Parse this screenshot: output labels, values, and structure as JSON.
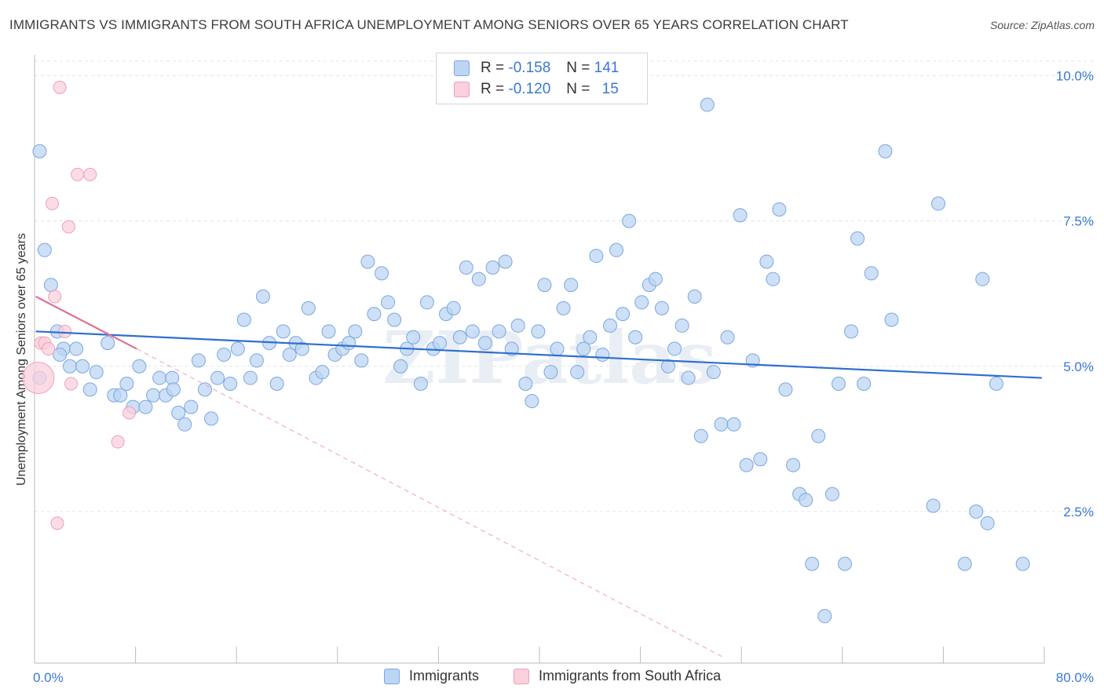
{
  "title": "IMMIGRANTS VS IMMIGRANTS FROM SOUTH AFRICA UNEMPLOYMENT AMONG SENIORS OVER 65 YEARS CORRELATION CHART",
  "source": "Source: ZipAtlas.com",
  "watermark": "ZIPatlas",
  "legend_stats": [
    {
      "r_label": "R =",
      "r_value": "-0.158",
      "n_label": "N =",
      "n_value": "141",
      "color": "#a8c8f0"
    },
    {
      "r_label": "R =",
      "r_value": "-0.120",
      "n_label": "N =",
      "n_value": "15",
      "color": "#f5b6c8"
    }
  ],
  "legend_series": [
    {
      "label": "Immigrants",
      "color": "#a8c8f0"
    },
    {
      "label": "Immigrants from South Africa",
      "color": "#f5b6c8"
    }
  ],
  "colors": {
    "blue_fill": "#bcd5f3",
    "blue_stroke": "#7aa7e0",
    "blue_line": "#2f6fcf",
    "pink_fill": "#f9d0dc",
    "pink_stroke": "#ee9fb5",
    "pink_line": "#e07095",
    "tick_text": "#3a78d4",
    "grid": "#e4e4e4"
  },
  "chart_data": {
    "type": "scatter",
    "title": "IMMIGRANTS VS IMMIGRANTS FROM SOUTH AFRICA UNEMPLOYMENT AMONG SENIORS OVER 65 YEARS CORRELATION CHART",
    "xlabel": "",
    "ylabel": "Unemployment Among Seniors over 65 years",
    "xlim": [
      0,
      80
    ],
    "ylim": [
      0,
      10.25
    ],
    "x_tick_labels": [
      "0.0%",
      "80.0%"
    ],
    "y_ticks": [
      2.5,
      5.0,
      7.5,
      10.0
    ],
    "y_tick_labels": [
      "2.5%",
      "5.0%",
      "7.5%",
      "10.0%"
    ],
    "grid": "horizontal dashed",
    "legend_position": "top-center",
    "series": [
      {
        "name": "Immigrants",
        "trend": {
          "x0": 0.1,
          "y0": 5.6,
          "x1": 79.8,
          "y1": 4.8
        },
        "points": [
          [
            0.4,
            8.7
          ],
          [
            0.8,
            7.0
          ],
          [
            1.3,
            6.4
          ],
          [
            1.8,
            5.6
          ],
          [
            2.3,
            5.3
          ],
          [
            2.8,
            5.0
          ],
          [
            3.3,
            5.3
          ],
          [
            3.8,
            5.0
          ],
          [
            4.4,
            4.6
          ],
          [
            4.9,
            4.9
          ],
          [
            5.8,
            5.4
          ],
          [
            6.3,
            4.5
          ],
          [
            6.8,
            4.5
          ],
          [
            7.3,
            4.7
          ],
          [
            7.8,
            4.3
          ],
          [
            8.3,
            5.0
          ],
          [
            8.8,
            4.3
          ],
          [
            9.4,
            4.5
          ],
          [
            9.9,
            4.8
          ],
          [
            10.4,
            4.5
          ],
          [
            10.9,
            4.8
          ],
          [
            11.4,
            4.2
          ],
          [
            11.9,
            4.0
          ],
          [
            12.4,
            4.3
          ],
          [
            13.0,
            5.1
          ],
          [
            13.5,
            4.6
          ],
          [
            14.0,
            4.1
          ],
          [
            14.5,
            4.8
          ],
          [
            15.0,
            5.2
          ],
          [
            15.5,
            4.7
          ],
          [
            16.1,
            5.3
          ],
          [
            16.6,
            5.8
          ],
          [
            17.1,
            4.8
          ],
          [
            17.6,
            5.1
          ],
          [
            18.1,
            6.2
          ],
          [
            18.6,
            5.4
          ],
          [
            19.2,
            4.7
          ],
          [
            19.7,
            5.6
          ],
          [
            20.2,
            5.2
          ],
          [
            20.7,
            5.4
          ],
          [
            21.2,
            5.3
          ],
          [
            21.7,
            6.0
          ],
          [
            22.3,
            4.8
          ],
          [
            22.8,
            4.9
          ],
          [
            23.3,
            5.6
          ],
          [
            23.8,
            5.2
          ],
          [
            24.4,
            5.3
          ],
          [
            24.9,
            5.4
          ],
          [
            25.4,
            5.6
          ],
          [
            25.9,
            5.1
          ],
          [
            26.4,
            6.8
          ],
          [
            26.9,
            5.9
          ],
          [
            27.5,
            6.6
          ],
          [
            28.0,
            6.1
          ],
          [
            28.5,
            5.8
          ],
          [
            29.0,
            5.0
          ],
          [
            29.5,
            5.3
          ],
          [
            30.0,
            5.5
          ],
          [
            30.6,
            4.7
          ],
          [
            31.1,
            6.1
          ],
          [
            31.6,
            5.3
          ],
          [
            32.1,
            5.4
          ],
          [
            32.6,
            5.9
          ],
          [
            33.2,
            6.0
          ],
          [
            33.7,
            5.5
          ],
          [
            34.2,
            6.7
          ],
          [
            34.7,
            5.6
          ],
          [
            35.2,
            6.5
          ],
          [
            35.7,
            5.4
          ],
          [
            36.3,
            6.7
          ],
          [
            36.8,
            5.6
          ],
          [
            37.3,
            6.8
          ],
          [
            37.8,
            5.3
          ],
          [
            38.3,
            5.7
          ],
          [
            38.9,
            4.7
          ],
          [
            39.4,
            4.4
          ],
          [
            39.9,
            5.6
          ],
          [
            40.4,
            6.4
          ],
          [
            40.9,
            4.9
          ],
          [
            41.4,
            5.3
          ],
          [
            41.9,
            6.0
          ],
          [
            42.5,
            6.4
          ],
          [
            43.0,
            4.9
          ],
          [
            43.5,
            5.3
          ],
          [
            44.0,
            5.5
          ],
          [
            44.5,
            6.9
          ],
          [
            45.0,
            5.2
          ],
          [
            45.6,
            5.7
          ],
          [
            46.1,
            7.0
          ],
          [
            46.6,
            5.9
          ],
          [
            47.1,
            7.5
          ],
          [
            47.6,
            5.5
          ],
          [
            48.1,
            6.1
          ],
          [
            48.7,
            6.4
          ],
          [
            49.2,
            6.5
          ],
          [
            49.7,
            6.0
          ],
          [
            50.2,
            5.0
          ],
          [
            50.7,
            5.3
          ],
          [
            51.3,
            5.7
          ],
          [
            51.8,
            4.8
          ],
          [
            52.3,
            6.2
          ],
          [
            52.8,
            3.8
          ],
          [
            53.3,
            9.5
          ],
          [
            53.8,
            4.9
          ],
          [
            54.4,
            4.0
          ],
          [
            54.9,
            5.5
          ],
          [
            55.4,
            4.0
          ],
          [
            55.9,
            7.6
          ],
          [
            56.4,
            3.3
          ],
          [
            56.9,
            5.1
          ],
          [
            57.5,
            3.4
          ],
          [
            58.0,
            6.8
          ],
          [
            58.5,
            6.5
          ],
          [
            59.0,
            7.7
          ],
          [
            59.5,
            4.6
          ],
          [
            60.1,
            3.3
          ],
          [
            60.6,
            2.8
          ],
          [
            61.1,
            2.7
          ],
          [
            61.6,
            1.6
          ],
          [
            62.1,
            3.8
          ],
          [
            62.6,
            0.7
          ],
          [
            63.2,
            2.8
          ],
          [
            63.7,
            4.7
          ],
          [
            64.2,
            1.6
          ],
          [
            64.7,
            5.6
          ],
          [
            65.2,
            7.2
          ],
          [
            65.7,
            4.7
          ],
          [
            66.3,
            6.6
          ],
          [
            67.4,
            8.7
          ],
          [
            67.9,
            5.8
          ],
          [
            71.2,
            2.6
          ],
          [
            71.6,
            7.8
          ],
          [
            73.7,
            1.6
          ],
          [
            74.6,
            2.5
          ],
          [
            75.1,
            6.5
          ],
          [
            75.5,
            2.3
          ],
          [
            76.2,
            4.7
          ],
          [
            78.3,
            1.6
          ],
          [
            0.4,
            4.8
          ],
          [
            2.0,
            5.2
          ],
          [
            11.0,
            4.6
          ]
        ]
      },
      {
        "name": "Immigrants from South Africa",
        "trend": {
          "x0": 0.1,
          "y0": 6.2,
          "x1": 8.1,
          "y1": 5.3
        },
        "trend_extension": {
          "x0": 8.1,
          "y0": 5.3,
          "x1": 54.5,
          "y1": 0.0
        },
        "points": [
          [
            0.3,
            4.8
          ],
          [
            0.5,
            5.4
          ],
          [
            0.8,
            5.4
          ],
          [
            1.1,
            5.3
          ],
          [
            1.4,
            7.8
          ],
          [
            1.6,
            6.2
          ],
          [
            2.0,
            9.8
          ],
          [
            2.4,
            5.6
          ],
          [
            2.7,
            7.4
          ],
          [
            2.9,
            4.7
          ],
          [
            3.4,
            8.3
          ],
          [
            4.4,
            8.3
          ],
          [
            6.6,
            3.7
          ],
          [
            7.5,
            4.2
          ],
          [
            1.8,
            2.3
          ]
        ]
      }
    ]
  }
}
